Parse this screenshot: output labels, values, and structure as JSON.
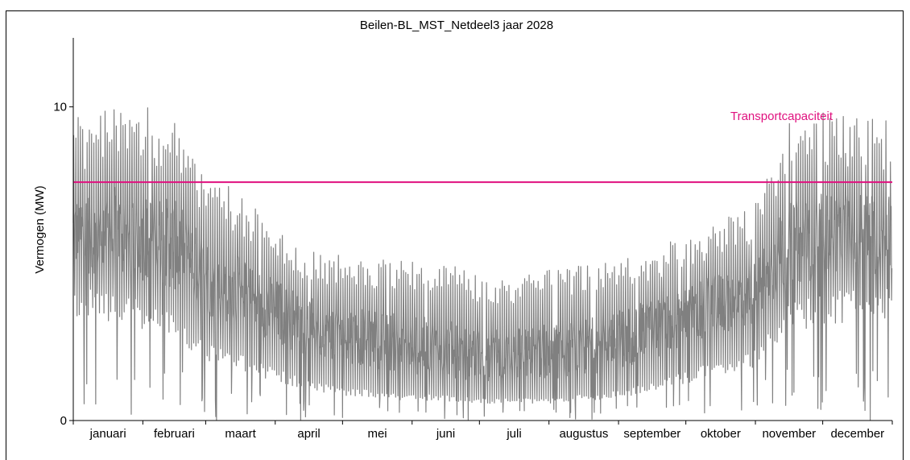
{
  "chart_data": {
    "type": "line",
    "title": "Beilen-BL_MST_Netdeel3 jaar 2028",
    "ylabel": "Vermogen (MW)",
    "xlabel": "",
    "ylim": [
      0,
      12.2
    ],
    "yticks": [
      0,
      10
    ],
    "grid": false,
    "legend": "none",
    "x_categories": [
      "januari",
      "februari",
      "maart",
      "april",
      "mei",
      "juni",
      "juli",
      "augustus",
      "september",
      "oktober",
      "november",
      "december"
    ],
    "series": [
      {
        "type": "load",
        "color": "#808080",
        "x_unit": "day of year",
        "days": [
          1,
          15,
          32,
          46,
          60,
          74,
          91,
          105,
          121,
          135,
          152,
          166,
          182,
          196,
          213,
          227,
          244,
          258,
          274,
          288,
          305,
          319,
          335,
          349,
          365
        ],
        "peak": [
          9.3,
          9.6,
          9.7,
          9.3,
          7.6,
          7.0,
          6.0,
          5.2,
          5.0,
          4.9,
          4.9,
          4.8,
          4.4,
          4.3,
          4.6,
          4.7,
          5.0,
          5.2,
          5.6,
          6.0,
          6.6,
          9.0,
          9.4,
          9.5,
          9.3
        ],
        "mean": [
          5.9,
          6.1,
          5.9,
          5.6,
          4.6,
          4.1,
          3.5,
          3.0,
          2.8,
          2.6,
          2.4,
          2.3,
          2.1,
          2.1,
          2.2,
          2.3,
          2.6,
          2.9,
          3.3,
          3.7,
          4.1,
          5.6,
          5.9,
          6.0,
          5.9
        ],
        "low": [
          3.6,
          3.4,
          3.2,
          2.9,
          2.1,
          1.8,
          1.4,
          1.1,
          0.9,
          0.8,
          0.7,
          0.7,
          0.6,
          0.6,
          0.6,
          0.7,
          0.8,
          1.0,
          1.3,
          1.6,
          1.9,
          3.1,
          3.4,
          3.5,
          3.6
        ]
      },
      {
        "name": "Transportcapaciteit",
        "type": "hline",
        "value": 7.6,
        "color": "#e0117f"
      }
    ]
  }
}
